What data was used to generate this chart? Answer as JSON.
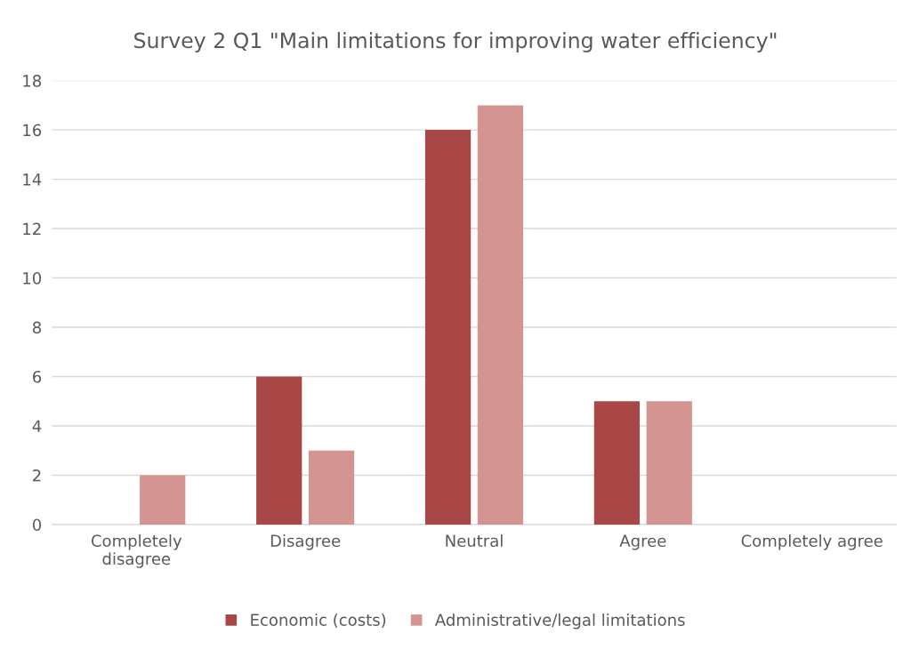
{
  "chart_data": {
    "type": "bar",
    "title": "Survey 2 Q1 \"Main limitations for improving water efficiency\"",
    "categories": [
      "Completely\ndisagree",
      "Disagree",
      "Neutral",
      "Agree",
      "Completely agree"
    ],
    "series": [
      {
        "name": "Economic (costs)",
        "color": "#a94646",
        "values": [
          0,
          6,
          16,
          5,
          0
        ]
      },
      {
        "name": "Administrative/legal limitations",
        "color": "#d39492",
        "values": [
          2,
          3,
          17,
          5,
          0
        ]
      }
    ],
    "ylim": [
      0,
      18
    ],
    "yticks": [
      0,
      2,
      4,
      6,
      8,
      10,
      12,
      14,
      16,
      18
    ],
    "grid": "y",
    "legend": "bottom"
  }
}
